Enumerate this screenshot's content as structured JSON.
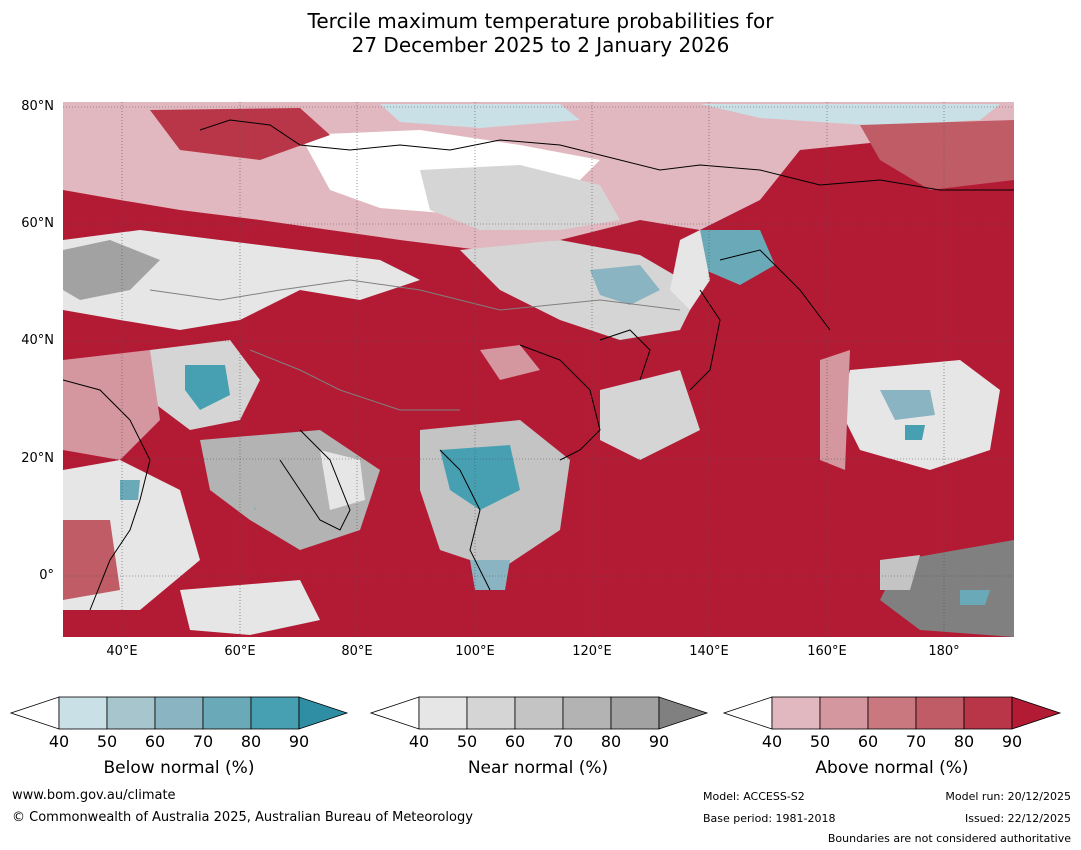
{
  "title": {
    "line1": "Tercile maximum temperature probabilities for",
    "line2": "27 December 2025 to 2 January 2026"
  },
  "map": {
    "lat_labels": [
      "80°N",
      "60°N",
      "40°N",
      "20°N",
      "0°"
    ],
    "lon_labels": [
      "40°E",
      "60°E",
      "80°E",
      "100°E",
      "120°E",
      "140°E",
      "160°E",
      "180°"
    ],
    "colors": {
      "ocean_default": "#b31b34",
      "land_outline": "#000000",
      "border_gray": "#808080",
      "grid": "#555555"
    }
  },
  "legend": {
    "ticks": [
      "40",
      "50",
      "60",
      "70",
      "80",
      "90"
    ],
    "below": {
      "label": "Below normal (%)",
      "colors": [
        "#ffffff",
        "#c9e0e6",
        "#a7c5cc",
        "#8ab4c1",
        "#6aa9b8",
        "#46a0b2",
        "#2f8ea3"
      ]
    },
    "near": {
      "label": "Near normal (%)",
      "colors": [
        "#ffffff",
        "#e6e6e6",
        "#d5d5d5",
        "#c4c4c4",
        "#b3b3b3",
        "#a2a2a2",
        "#808080"
      ]
    },
    "above": {
      "label": "Above normal (%)",
      "colors": [
        "#ffffff",
        "#e1b8bf",
        "#d4969f",
        "#c97880",
        "#c05c66",
        "#b93648",
        "#b31b34"
      ]
    }
  },
  "footer": {
    "url": "www.bom.gov.au/climate",
    "copyright": "© Commonwealth of Australia 2025, Australian Bureau of Meteorology",
    "model": "Model: ACCESS-S2",
    "base_period": "Base period: 1981-2018",
    "model_run": "Model run: 20/12/2025",
    "issued": "Issued: 22/12/2025",
    "disclaimer": "Boundaries are not considered authoritative"
  }
}
